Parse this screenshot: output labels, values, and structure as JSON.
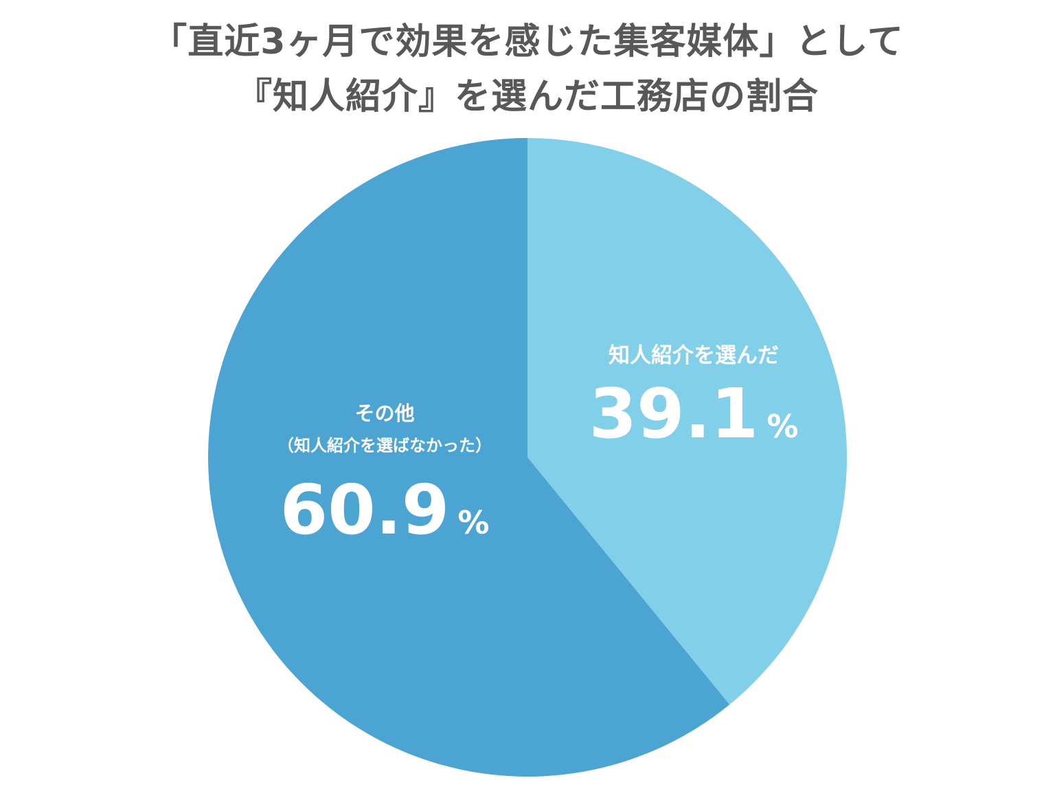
{
  "title": {
    "line1": "「直近3ヶ月で効果を感じた集客媒体」として",
    "line2": "『知人紹介』を選んだ工務店の割合"
  },
  "chart_data": {
    "type": "pie",
    "title": "「直近3ヶ月で効果を感じた集客媒体」として『知人紹介』を選んだ工務店の割合",
    "start_angle": "12 o'clock",
    "direction": "clockwise",
    "unit": "%",
    "legend": "none",
    "slices": [
      {
        "label": "知人紹介を選んだ",
        "sublabel": "",
        "value": 39.1,
        "value_text": "39.1",
        "color": "#82cfe9"
      },
      {
        "label": "その他",
        "sublabel": "（知人紹介を選ばなかった）",
        "value": 60.9,
        "value_text": "60.9",
        "color": "#4ba4d1"
      }
    ]
  }
}
